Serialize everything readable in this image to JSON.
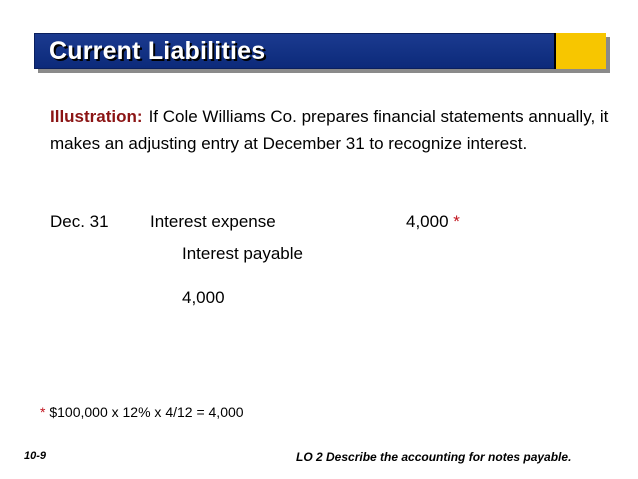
{
  "title": "Current Liabilities",
  "illustration": {
    "label": "Illustration:",
    "text": "If Cole Williams Co. prepares financial statements annually, it makes an adjusting entry at December 31 to recognize interest."
  },
  "entry": {
    "date": "Dec. 31",
    "debit_account": "Interest expense",
    "debit_amount": "4,000",
    "debit_marker": "*",
    "credit_account": "Interest payable",
    "credit_amount": "4,000"
  },
  "footnote": {
    "marker": "*",
    "text": "$100,000 x 12% x 4/12 = 4,000"
  },
  "slide_number": "10-9",
  "learning_objective": "LO 2  Describe the accounting for notes payable.",
  "colors": {
    "title_bar": "#0c2a7a",
    "accent": "#f7c600",
    "illustration_label": "#8b1414",
    "marker": "#c1121c"
  }
}
